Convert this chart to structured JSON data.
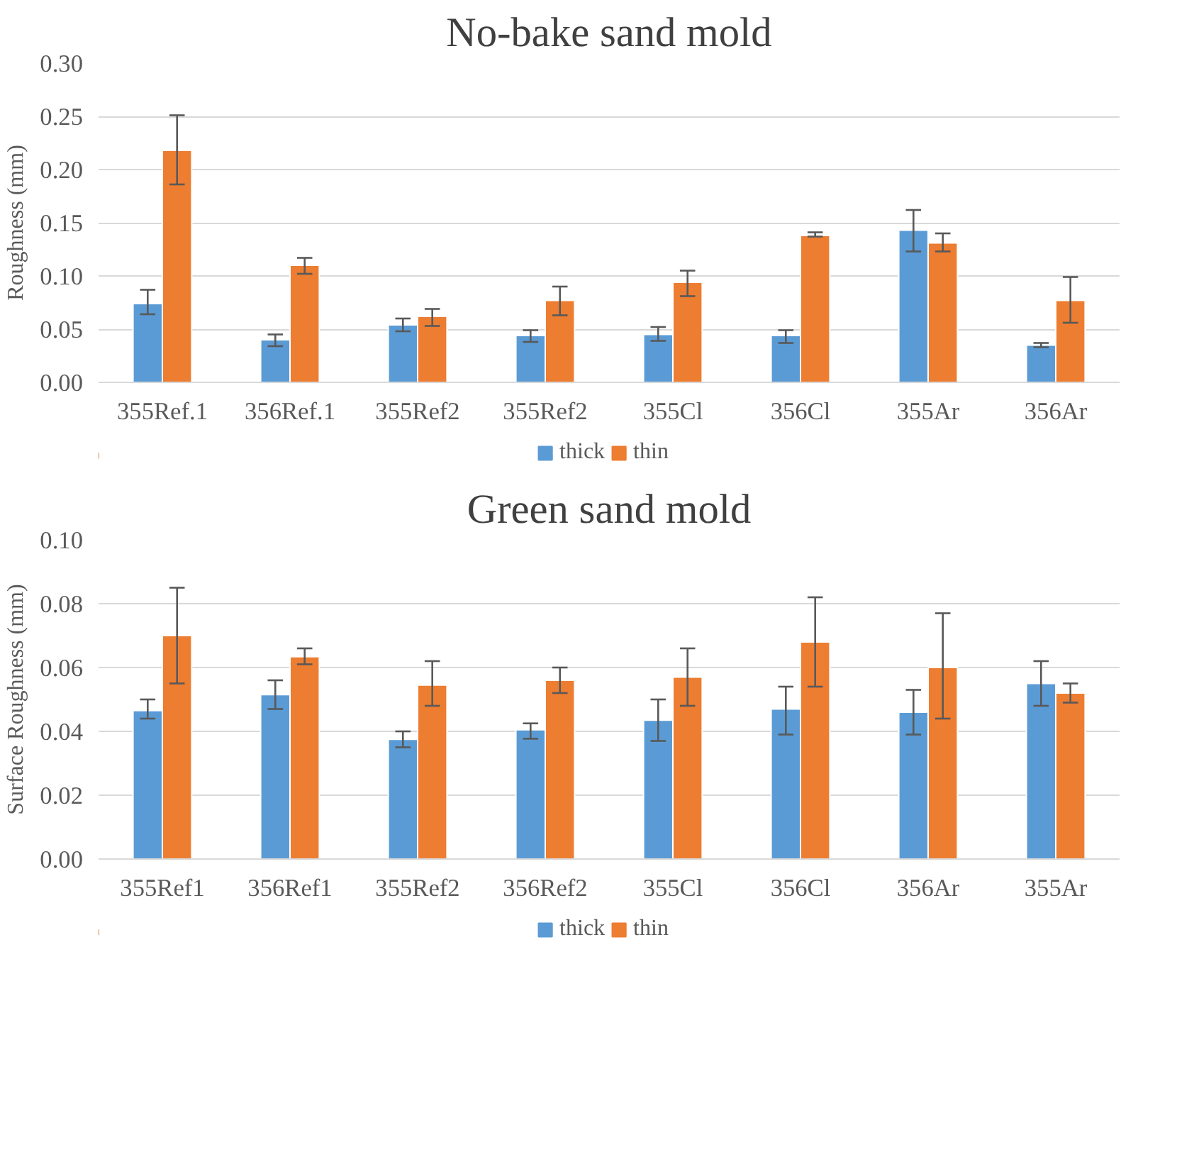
{
  "chart_data": [
    {
      "type": "bar",
      "title": "No-bake sand mold",
      "ylabel": "Roughness (mm)",
      "categories": [
        "355Ref.1",
        "356Ref.1",
        "355Ref2",
        "355Ref2",
        "355Cl",
        "356Cl",
        "355Ar",
        "356Ar"
      ],
      "series": [
        {
          "name": "thick",
          "color": "#5b9bd5",
          "values": [
            0.074,
            0.04,
            0.054,
            0.044,
            0.045,
            0.044,
            0.143,
            0.035
          ],
          "errors": [
            [
              0.064,
              0.087
            ],
            [
              0.034,
              0.045
            ],
            [
              0.048,
              0.06
            ],
            [
              0.038,
              0.049
            ],
            [
              0.039,
              0.052
            ],
            [
              0.037,
              0.049
            ],
            [
              0.123,
              0.162
            ],
            [
              0.033,
              0.037
            ]
          ]
        },
        {
          "name": "thin",
          "color": "#ed7d31",
          "values": [
            0.218,
            0.11,
            0.062,
            0.077,
            0.094,
            0.138,
            0.131,
            0.077
          ],
          "errors": [
            [
              0.186,
              0.251
            ],
            [
              0.102,
              0.117
            ],
            [
              0.053,
              0.069
            ],
            [
              0.063,
              0.09
            ],
            [
              0.081,
              0.105
            ],
            [
              0.137,
              0.141
            ],
            [
              0.123,
              0.14
            ],
            [
              0.056,
              0.099
            ]
          ]
        }
      ],
      "ylim": [
        0,
        0.3
      ],
      "yticks": [
        {
          "value": 0,
          "label": "0.00"
        },
        {
          "value": 0.05,
          "label": "0.05"
        },
        {
          "value": 0.1,
          "label": "0.10"
        },
        {
          "value": 0.15,
          "label": "0.15"
        },
        {
          "value": 0.2,
          "label": "0.20"
        },
        {
          "value": 0.25,
          "label": "0.25"
        },
        {
          "value": 0.3,
          "label": "0.30"
        }
      ],
      "grid": "y",
      "legend": "bottom"
    },
    {
      "type": "bar",
      "title": "Green sand mold",
      "ylabel": "Surface Roughness (mm)",
      "categories": [
        "355Ref1",
        "356Ref1",
        "355Ref2",
        "356Ref2",
        "355Cl",
        "356Cl",
        "356Ar",
        "355Ar"
      ],
      "series": [
        {
          "name": "thick",
          "color": "#5b9bd5",
          "values": [
            0.0465,
            0.0515,
            0.0375,
            0.0405,
            0.0435,
            0.047,
            0.046,
            0.055
          ],
          "errors": [
            [
              0.044,
              0.05
            ],
            [
              0.047,
              0.056
            ],
            [
              0.035,
              0.04
            ],
            [
              0.0377,
              0.0425
            ],
            [
              0.037,
              0.05
            ],
            [
              0.039,
              0.054
            ],
            [
              0.039,
              0.053
            ],
            [
              0.048,
              0.062
            ]
          ]
        },
        {
          "name": "thin",
          "color": "#ed7d31",
          "values": [
            0.07,
            0.0634,
            0.0545,
            0.056,
            0.057,
            0.068,
            0.06,
            0.052
          ],
          "errors": [
            [
              0.055,
              0.085
            ],
            [
              0.061,
              0.066
            ],
            [
              0.048,
              0.062
            ],
            [
              0.052,
              0.06
            ],
            [
              0.048,
              0.066
            ],
            [
              0.054,
              0.082
            ],
            [
              0.044,
              0.077
            ],
            [
              0.049,
              0.055
            ]
          ]
        }
      ],
      "ylim": [
        0,
        0.1
      ],
      "yticks": [
        {
          "value": 0,
          "label": "0.00"
        },
        {
          "value": 0.02,
          "label": "0.02"
        },
        {
          "value": 0.04,
          "label": "0.04"
        },
        {
          "value": 0.06,
          "label": "0.06"
        },
        {
          "value": 0.08,
          "label": "0.08"
        },
        {
          "value": 0.1,
          "label": "0.10"
        }
      ],
      "grid": "y",
      "legend": "bottom"
    }
  ]
}
